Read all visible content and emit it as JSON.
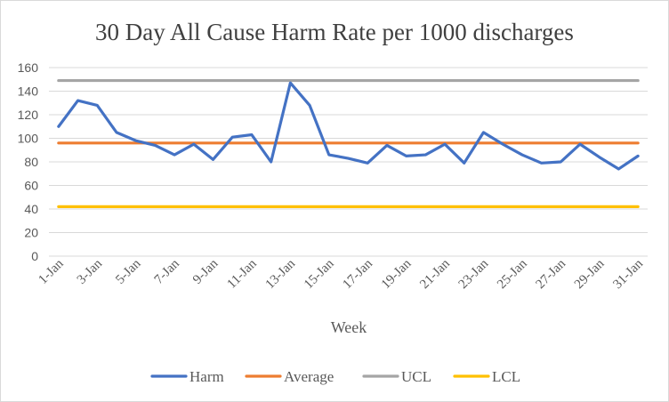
{
  "chart_data": {
    "type": "line",
    "title": "30 Day All Cause Harm Rate per 1000 discharges",
    "xlabel": "Week",
    "ylabel": "",
    "ylim": [
      0,
      160
    ],
    "yticks": [
      0,
      20,
      40,
      60,
      80,
      100,
      120,
      140,
      160
    ],
    "grid": true,
    "legend": "bottom",
    "x": [
      "1-Jan",
      "2-Jan",
      "3-Jan",
      "4-Jan",
      "5-Jan",
      "6-Jan",
      "7-Jan",
      "8-Jan",
      "9-Jan",
      "10-Jan",
      "11-Jan",
      "12-Jan",
      "13-Jan",
      "14-Jan",
      "15-Jan",
      "16-Jan",
      "17-Jan",
      "18-Jan",
      "19-Jan",
      "20-Jan",
      "21-Jan",
      "22-Jan",
      "23-Jan",
      "24-Jan",
      "25-Jan",
      "26-Jan",
      "27-Jan",
      "28-Jan",
      "29-Jan",
      "30-Jan",
      "31-Jan"
    ],
    "x_tick_labels": [
      "1-Jan",
      "3-Jan",
      "5-Jan",
      "7-Jan",
      "9-Jan",
      "11-Jan",
      "13-Jan",
      "15-Jan",
      "17-Jan",
      "19-Jan",
      "21-Jan",
      "23-Jan",
      "25-Jan",
      "27-Jan",
      "29-Jan",
      "31-Jan"
    ],
    "series": [
      {
        "name": "Harm",
        "color": "#4472C4",
        "values": [
          110,
          132,
          128,
          105,
          98,
          94,
          86,
          95,
          82,
          101,
          103,
          80,
          147,
          128,
          86,
          83,
          79,
          94,
          85,
          86,
          95,
          79,
          105,
          95,
          86,
          79,
          80,
          95,
          84,
          74,
          85
        ]
      },
      {
        "name": "Average",
        "color": "#ED7D31",
        "values": [
          96,
          96,
          96,
          96,
          96,
          96,
          96,
          96,
          96,
          96,
          96,
          96,
          96,
          96,
          96,
          96,
          96,
          96,
          96,
          96,
          96,
          96,
          96,
          96,
          96,
          96,
          96,
          96,
          96,
          96,
          96
        ]
      },
      {
        "name": "UCL",
        "color": "#A5A5A5",
        "values": [
          149,
          149,
          149,
          149,
          149,
          149,
          149,
          149,
          149,
          149,
          149,
          149,
          149,
          149,
          149,
          149,
          149,
          149,
          149,
          149,
          149,
          149,
          149,
          149,
          149,
          149,
          149,
          149,
          149,
          149,
          149
        ]
      },
      {
        "name": "LCL",
        "color": "#FFC000",
        "values": [
          42,
          42,
          42,
          42,
          42,
          42,
          42,
          42,
          42,
          42,
          42,
          42,
          42,
          42,
          42,
          42,
          42,
          42,
          42,
          42,
          42,
          42,
          42,
          42,
          42,
          42,
          42,
          42,
          42,
          42,
          42
        ]
      }
    ]
  },
  "colors": {
    "gridline": "#d9d9d9",
    "axis_text": "#595959",
    "title_text": "#404040"
  }
}
